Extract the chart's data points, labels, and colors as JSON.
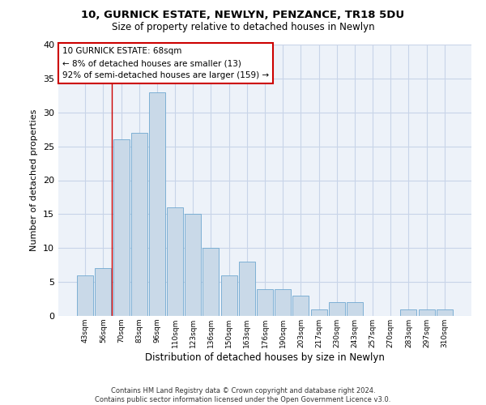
{
  "title1": "10, GURNICK ESTATE, NEWLYN, PENZANCE, TR18 5DU",
  "title2": "Size of property relative to detached houses in Newlyn",
  "xlabel": "Distribution of detached houses by size in Newlyn",
  "ylabel": "Number of detached properties",
  "bar_labels": [
    "43sqm",
    "56sqm",
    "70sqm",
    "83sqm",
    "96sqm",
    "110sqm",
    "123sqm",
    "136sqm",
    "150sqm",
    "163sqm",
    "176sqm",
    "190sqm",
    "203sqm",
    "217sqm",
    "230sqm",
    "243sqm",
    "257sqm",
    "270sqm",
    "283sqm",
    "297sqm",
    "310sqm"
  ],
  "bar_values": [
    6,
    7,
    26,
    27,
    33,
    16,
    15,
    10,
    6,
    8,
    4,
    4,
    3,
    1,
    2,
    2,
    0,
    0,
    1,
    1,
    1
  ],
  "bar_color": "#c9d9e8",
  "bar_edge_color": "#6fa8d0",
  "vline_color": "#cc0000",
  "vline_x": 1.5,
  "annotation_text": "10 GURNICK ESTATE: 68sqm\n← 8% of detached houses are smaller (13)\n92% of semi-detached houses are larger (159) →",
  "annotation_box_edge": "#cc0000",
  "ylim": [
    0,
    40
  ],
  "yticks": [
    0,
    5,
    10,
    15,
    20,
    25,
    30,
    35,
    40
  ],
  "grid_color": "#c8d4e8",
  "footer": "Contains HM Land Registry data © Crown copyright and database right 2024.\nContains public sector information licensed under the Open Government Licence v3.0.",
  "bg_color": "#edf2f9"
}
